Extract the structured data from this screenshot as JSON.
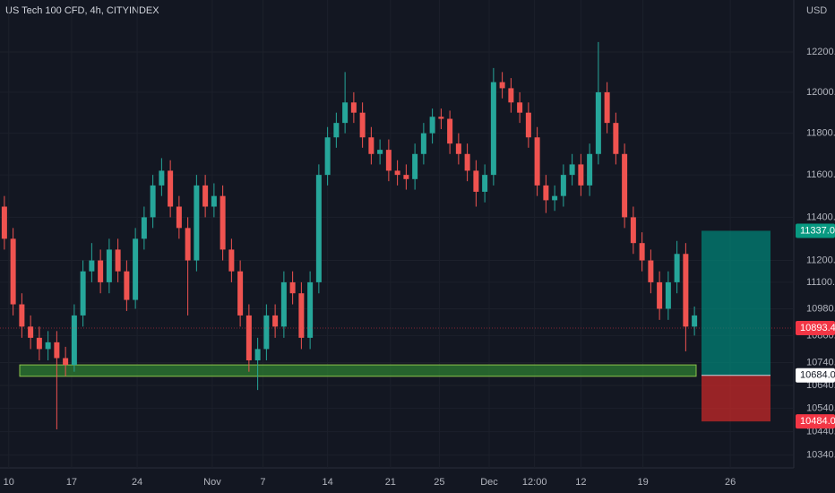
{
  "chart_data": {
    "type": "candlestick",
    "title": "US Tech 100 CFD, 4h, CITYINDEX",
    "currency": "USD",
    "log_scale": true,
    "up_color": "#26a69a",
    "down_color": "#ef5350",
    "ylim": [
      10286,
      12463
    ],
    "xlim": [
      -0.5,
      90.27
    ],
    "yticks": [
      {
        "value": 12200,
        "label": "12200.0"
      },
      {
        "value": 12000,
        "label": "12000.0"
      },
      {
        "value": 11800,
        "label": "11800.0"
      },
      {
        "value": 11600,
        "label": "11600.0"
      },
      {
        "value": 11400,
        "label": "11400.0"
      },
      {
        "value": 11200,
        "label": "11200.0"
      },
      {
        "value": 11100,
        "label": "11100.0"
      },
      {
        "value": 10980,
        "label": "10980.0"
      },
      {
        "value": 10860,
        "label": "10860.0"
      },
      {
        "value": 10740,
        "label": "10740.0"
      },
      {
        "value": 10640,
        "label": "10640.0"
      },
      {
        "value": 10540,
        "label": "10540.0"
      },
      {
        "value": 10440,
        "label": "10440.0"
      },
      {
        "value": 10340,
        "label": "10340.0"
      }
    ],
    "xticks": [
      {
        "value": 0.5,
        "label": "10"
      },
      {
        "value": 7.7,
        "label": "17"
      },
      {
        "value": 15.2,
        "label": "24"
      },
      {
        "value": 23.8,
        "label": "Nov"
      },
      {
        "value": 29.6,
        "label": "7"
      },
      {
        "value": 37,
        "label": "14"
      },
      {
        "value": 44.2,
        "label": "21"
      },
      {
        "value": 49.8,
        "label": "25"
      },
      {
        "value": 55.5,
        "label": "Dec"
      },
      {
        "value": 60.7,
        "label": "12:00"
      },
      {
        "value": 66,
        "label": "12"
      },
      {
        "value": 73.1,
        "label": "19"
      },
      {
        "value": 83.1,
        "label": "26"
      }
    ],
    "open": [
      11450,
      11300,
      11000,
      10900,
      10850,
      10800,
      10830,
      10760,
      10730,
      10950,
      11150,
      11200,
      11100,
      11250,
      11150,
      11020,
      11300,
      11400,
      11550,
      11620,
      11450,
      11350,
      11200,
      11550,
      11450,
      11500,
      11250,
      11150,
      10950,
      10750,
      10800,
      10950,
      10900,
      11100,
      11050,
      10850,
      11100,
      11600,
      11780,
      11850,
      11950,
      11900,
      11780,
      11700,
      11720,
      11620,
      11600,
      11580,
      11700,
      11800,
      11880,
      11870,
      11750,
      11700,
      11620,
      11520,
      11600,
      12050,
      12020,
      11950,
      11900,
      11780,
      11550,
      11480,
      11500,
      11600,
      11650,
      11550,
      11700,
      12000,
      11850,
      11700,
      11400,
      11280,
      11200,
      11100,
      10980,
      11100,
      11230,
      10900
    ],
    "high": [
      11500,
      11350,
      11050,
      10950,
      10900,
      10880,
      10880,
      10810,
      11000,
      11200,
      11280,
      11250,
      11300,
      11300,
      11200,
      11350,
      11450,
      11600,
      11680,
      11670,
      11500,
      11400,
      11600,
      11600,
      11560,
      11550,
      11300,
      11200,
      11000,
      10850,
      11000,
      11000,
      11150,
      11150,
      11100,
      11150,
      11650,
      11830,
      11900,
      12100,
      12000,
      11950,
      11830,
      11770,
      11770,
      11670,
      11650,
      11750,
      11850,
      11920,
      11920,
      11910,
      11800,
      11750,
      11670,
      11650,
      12120,
      12100,
      12070,
      12000,
      11950,
      11830,
      11600,
      11550,
      11650,
      11700,
      11700,
      11750,
      12250,
      12050,
      11900,
      11750,
      11450,
      11330,
      11250,
      11150,
      11150,
      11290,
      11280,
      10990
    ],
    "low": [
      11250,
      10950,
      10850,
      10800,
      10750,
      10750,
      10450,
      10680,
      10700,
      10900,
      11100,
      11050,
      11050,
      11100,
      10970,
      10980,
      11250,
      11350,
      11500,
      11400,
      11300,
      10950,
      11150,
      11400,
      11400,
      11200,
      11100,
      10900,
      10700,
      10620,
      10750,
      10850,
      10850,
      11000,
      10800,
      10800,
      11050,
      11550,
      11730,
      11800,
      11850,
      11730,
      11650,
      11650,
      11570,
      11550,
      11530,
      11530,
      11650,
      11750,
      11820,
      11700,
      11650,
      11570,
      11450,
      11470,
      11550,
      11970,
      11900,
      11850,
      11730,
      11500,
      11420,
      11430,
      11450,
      11550,
      11500,
      11500,
      11650,
      11800,
      11650,
      11350,
      11230,
      11150,
      11050,
      10930,
      10930,
      11050,
      10790,
      10860
    ],
    "close": [
      11300,
      11000,
      10900,
      10850,
      10800,
      10830,
      10760,
      10730,
      10950,
      11150,
      11200,
      11100,
      11250,
      11150,
      11020,
      11300,
      11400,
      11550,
      11620,
      11450,
      11350,
      11200,
      11550,
      11450,
      11500,
      11250,
      11150,
      10950,
      10750,
      10800,
      10950,
      10900,
      11100,
      11050,
      10850,
      11100,
      11600,
      11780,
      11850,
      11950,
      11900,
      11780,
      11700,
      11720,
      11620,
      11600,
      11580,
      11700,
      11800,
      11880,
      11870,
      11750,
      11700,
      11620,
      11520,
      11600,
      12050,
      12020,
      11950,
      11900,
      11780,
      11550,
      11480,
      11500,
      11600,
      11650,
      11550,
      11700,
      12000,
      11850,
      11700,
      11400,
      11280,
      11200,
      11100,
      10980,
      11100,
      11230,
      10900,
      10950
    ],
    "zone": {
      "low": 10680,
      "high": 10730,
      "color": "#2e7d32"
    },
    "last_price": 10893.4,
    "position": {
      "values": [
        11337,
        10684,
        10484
      ],
      "value_labels": [
        "11337.0",
        "10684.0",
        "10484.0"
      ]
    }
  }
}
